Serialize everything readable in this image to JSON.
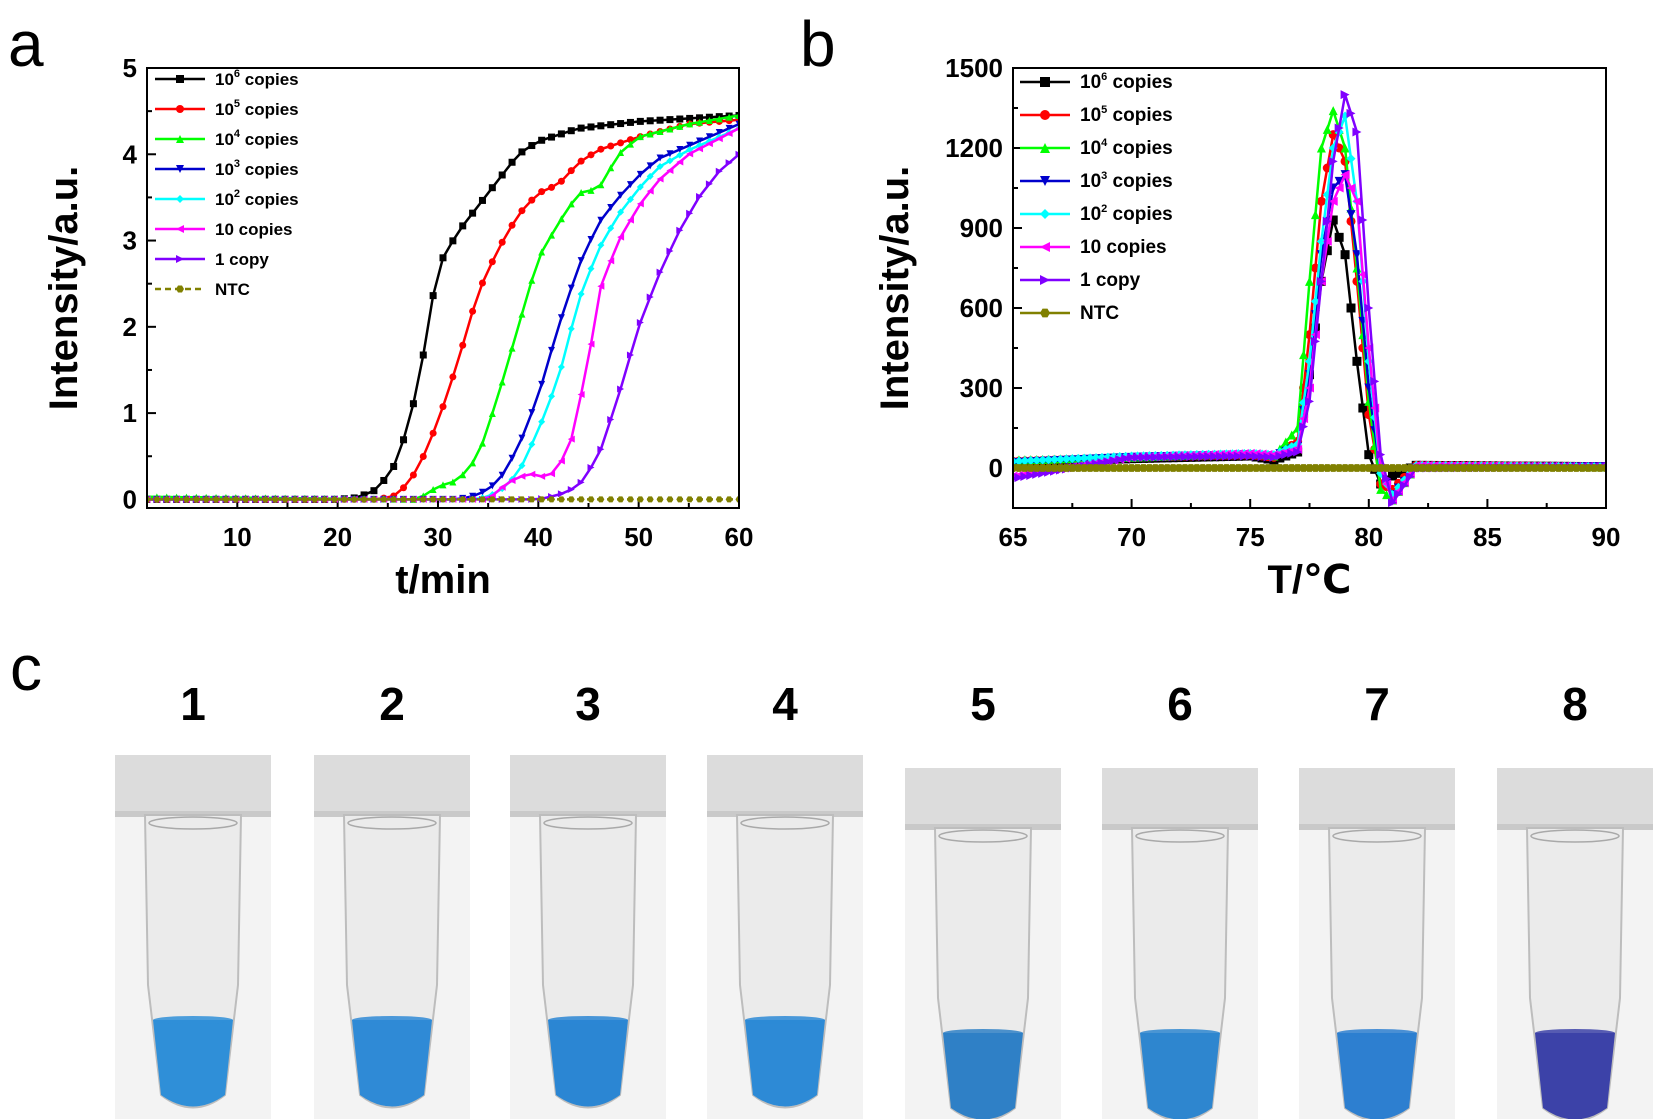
{
  "panels": {
    "a": "a",
    "b": "b",
    "c": "c"
  },
  "chart_data": [
    {
      "id": "a",
      "type": "line",
      "title": "",
      "xlabel": "t/min",
      "ylabel": "Intensity/a.u.",
      "xlim": [
        1,
        60
      ],
      "ylim": [
        -0.1,
        5
      ],
      "xticks": [
        10,
        20,
        30,
        40,
        50,
        60
      ],
      "yticks": [
        0,
        1,
        2,
        3,
        4,
        5
      ],
      "legend_position": "top-left",
      "series": [
        {
          "name": "10⁶ copies",
          "label_base": "10",
          "label_sup": "6",
          "label_rest": " copies",
          "color": "#000000",
          "marker": "square",
          "points": [
            [
              1,
              0
            ],
            [
              20,
              0
            ],
            [
              22,
              0.02
            ],
            [
              24,
              0.12
            ],
            [
              26,
              0.45
            ],
            [
              28,
              1.3
            ],
            [
              29,
              2.0
            ],
            [
              30,
              2.7
            ],
            [
              32,
              3.1
            ],
            [
              34,
              3.4
            ],
            [
              36,
              3.7
            ],
            [
              38,
              4.0
            ],
            [
              40,
              4.15
            ],
            [
              44,
              4.3
            ],
            [
              50,
              4.38
            ],
            [
              60,
              4.45
            ]
          ]
        },
        {
          "name": "10⁵ copies",
          "label_base": "10",
          "label_sup": "5",
          "label_rest": " copies",
          "color": "#ff0000",
          "marker": "circle",
          "points": [
            [
              1,
              0
            ],
            [
              24,
              0
            ],
            [
              26,
              0.05
            ],
            [
              28,
              0.35
            ],
            [
              30,
              0.9
            ],
            [
              32,
              1.6
            ],
            [
              34,
              2.4
            ],
            [
              36,
              2.9
            ],
            [
              38,
              3.3
            ],
            [
              40,
              3.55
            ],
            [
              42,
              3.65
            ],
            [
              44,
              3.9
            ],
            [
              46,
              4.05
            ],
            [
              50,
              4.2
            ],
            [
              55,
              4.35
            ],
            [
              60,
              4.4
            ]
          ]
        },
        {
          "name": "10⁴ copies",
          "label_base": "10",
          "label_sup": "4",
          "label_rest": " copies",
          "color": "#00ff00",
          "marker": "triangle-up",
          "points": [
            [
              1,
              0.03
            ],
            [
              28,
              0
            ],
            [
              30,
              0.15
            ],
            [
              32,
              0.22
            ],
            [
              34,
              0.5
            ],
            [
              36,
              1.2
            ],
            [
              38,
              2.0
            ],
            [
              40,
              2.8
            ],
            [
              42,
              3.2
            ],
            [
              44,
              3.55
            ],
            [
              46,
              3.6
            ],
            [
              48,
              4.0
            ],
            [
              50,
              4.2
            ],
            [
              55,
              4.35
            ],
            [
              60,
              4.45
            ]
          ]
        },
        {
          "name": "10³ copies",
          "label_base": "10",
          "label_sup": "3",
          "label_rest": " copies",
          "color": "#0000cc",
          "marker": "triangle-down",
          "points": [
            [
              1,
              0
            ],
            [
              32,
              0
            ],
            [
              34,
              0.05
            ],
            [
              36,
              0.2
            ],
            [
              38,
              0.6
            ],
            [
              40,
              1.2
            ],
            [
              42,
              2.0
            ],
            [
              44,
              2.7
            ],
            [
              46,
              3.2
            ],
            [
              48,
              3.5
            ],
            [
              50,
              3.75
            ],
            [
              52,
              3.95
            ],
            [
              55,
              4.1
            ],
            [
              60,
              4.35
            ]
          ]
        },
        {
          "name": "10² copies",
          "label_base": "10",
          "label_sup": "2",
          "label_rest": " copies",
          "color": "#00ffff",
          "marker": "diamond",
          "points": [
            [
              1,
              0
            ],
            [
              34,
              0
            ],
            [
              36,
              0.08
            ],
            [
              38,
              0.3
            ],
            [
              40,
              0.8
            ],
            [
              42,
              1.4
            ],
            [
              44,
              2.3
            ],
            [
              46,
              2.9
            ],
            [
              48,
              3.3
            ],
            [
              50,
              3.6
            ],
            [
              52,
              3.85
            ],
            [
              55,
              4.05
            ],
            [
              60,
              4.3
            ]
          ]
        },
        {
          "name": "10 copies",
          "label_base": "10 copies",
          "label_sup": "",
          "label_rest": "",
          "color": "#ff00ff",
          "marker": "triangle-left",
          "points": [
            [
              1,
              0
            ],
            [
              35,
              0
            ],
            [
              37,
              0.2
            ],
            [
              39,
              0.3
            ],
            [
              41,
              0.25
            ],
            [
              43,
              0.55
            ],
            [
              45,
              1.6
            ],
            [
              46,
              2.4
            ],
            [
              48,
              3.0
            ],
            [
              50,
              3.4
            ],
            [
              52,
              3.7
            ],
            [
              55,
              4.0
            ],
            [
              60,
              4.3
            ]
          ]
        },
        {
          "name": "1 copy",
          "label_base": "1 copy",
          "label_sup": "",
          "label_rest": "",
          "color": "#8000ff",
          "marker": "triangle-right",
          "points": [
            [
              1,
              0
            ],
            [
              40,
              0
            ],
            [
              42,
              0.05
            ],
            [
              44,
              0.15
            ],
            [
              46,
              0.5
            ],
            [
              48,
              1.2
            ],
            [
              50,
              2.0
            ],
            [
              52,
              2.6
            ],
            [
              54,
              3.1
            ],
            [
              56,
              3.5
            ],
            [
              58,
              3.8
            ],
            [
              60,
              4.0
            ]
          ]
        },
        {
          "name": "NTC",
          "label_base": "NTC",
          "label_sup": "",
          "label_rest": "",
          "color": "#808000",
          "marker": "hexagon",
          "dashed": true,
          "points": [
            [
              1,
              0
            ],
            [
              60,
              0
            ]
          ]
        }
      ]
    },
    {
      "id": "b",
      "type": "line",
      "title": "",
      "xlabel": "T/℃",
      "ylabel": "Intensity/a.u.",
      "xlim": [
        65,
        90
      ],
      "ylim": [
        -150,
        1500
      ],
      "xticks": [
        65,
        70,
        75,
        80,
        85,
        90
      ],
      "yticks": [
        0,
        300,
        600,
        900,
        1200,
        1500
      ],
      "legend_position": "top-left",
      "series": [
        {
          "name": "10⁶ copies",
          "label_base": "10",
          "label_sup": "6",
          "label_rest": " copies",
          "color": "#000000",
          "marker": "square",
          "points": [
            [
              65,
              20
            ],
            [
              70,
              35
            ],
            [
              75,
              45
            ],
            [
              76,
              30
            ],
            [
              77,
              60
            ],
            [
              77.5,
              350
            ],
            [
              78,
              700
            ],
            [
              78.5,
              930
            ],
            [
              79,
              800
            ],
            [
              79.5,
              400
            ],
            [
              80,
              50
            ],
            [
              80.5,
              -60
            ],
            [
              81,
              -30
            ],
            [
              82,
              10
            ],
            [
              90,
              5
            ]
          ]
        },
        {
          "name": "10⁵ copies",
          "label_base": "10",
          "label_sup": "5",
          "label_rest": " copies",
          "color": "#ff0000",
          "marker": "circle",
          "points": [
            [
              65,
              25
            ],
            [
              70,
              40
            ],
            [
              75,
              50
            ],
            [
              76,
              40
            ],
            [
              77,
              100
            ],
            [
              77.5,
              500
            ],
            [
              78,
              1000
            ],
            [
              78.5,
              1250
            ],
            [
              79,
              1150
            ],
            [
              79.5,
              700
            ],
            [
              80,
              200
            ],
            [
              80.5,
              -60
            ],
            [
              81,
              -80
            ],
            [
              82,
              10
            ],
            [
              90,
              5
            ]
          ]
        },
        {
          "name": "10⁴ copies",
          "label_base": "10",
          "label_sup": "4",
          "label_rest": " copies",
          "color": "#00ff00",
          "marker": "triangle-up",
          "points": [
            [
              65,
              30
            ],
            [
              70,
              40
            ],
            [
              75,
              55
            ],
            [
              76,
              45
            ],
            [
              77,
              150
            ],
            [
              77.5,
              700
            ],
            [
              78,
              1200
            ],
            [
              78.5,
              1340
            ],
            [
              79,
              1200
            ],
            [
              79.5,
              750
            ],
            [
              80,
              250
            ],
            [
              80.5,
              -80
            ],
            [
              81,
              -120
            ],
            [
              82,
              10
            ],
            [
              90,
              5
            ]
          ]
        },
        {
          "name": "10³ copies",
          "label_base": "10",
          "label_sup": "3",
          "label_rest": " copies",
          "color": "#0000cc",
          "marker": "triangle-down",
          "points": [
            [
              65,
              20
            ],
            [
              70,
              40
            ],
            [
              75,
              50
            ],
            [
              76,
              45
            ],
            [
              77,
              80
            ],
            [
              77.5,
              350
            ],
            [
              78,
              800
            ],
            [
              78.5,
              1050
            ],
            [
              79,
              1100
            ],
            [
              79.5,
              800
            ],
            [
              80,
              300
            ],
            [
              80.5,
              -20
            ],
            [
              81,
              -100
            ],
            [
              82,
              0
            ],
            [
              90,
              5
            ]
          ]
        },
        {
          "name": "10² copies",
          "label_base": "10",
          "label_sup": "2",
          "label_rest": " copies",
          "color": "#00ffff",
          "marker": "diamond",
          "points": [
            [
              65,
              25
            ],
            [
              70,
              45
            ],
            [
              75,
              55
            ],
            [
              76,
              50
            ],
            [
              77,
              90
            ],
            [
              77.5,
              400
            ],
            [
              78,
              850
            ],
            [
              78.5,
              1200
            ],
            [
              79,
              1320
            ],
            [
              79.5,
              1000
            ],
            [
              80,
              400
            ],
            [
              80.5,
              -20
            ],
            [
              81,
              -100
            ],
            [
              82,
              10
            ],
            [
              90,
              5
            ]
          ]
        },
        {
          "name": "10 copies",
          "label_base": "10 copies",
          "label_sup": "",
          "label_rest": "",
          "color": "#ff00ff",
          "marker": "triangle-left",
          "points": [
            [
              65,
              -30
            ],
            [
              70,
              40
            ],
            [
              75,
              55
            ],
            [
              76,
              50
            ],
            [
              77,
              70
            ],
            [
              77.5,
              300
            ],
            [
              78,
              700
            ],
            [
              78.5,
              1000
            ],
            [
              79,
              1100
            ],
            [
              79.5,
              1000
            ],
            [
              80,
              450
            ],
            [
              80.5,
              0
            ],
            [
              81,
              -120
            ],
            [
              82,
              10
            ],
            [
              90,
              5
            ]
          ]
        },
        {
          "name": "1 copy",
          "label_base": "1 copy",
          "label_sup": "",
          "label_rest": "",
          "color": "#8000ff",
          "marker": "triangle-right",
          "points": [
            [
              65,
              -40
            ],
            [
              70,
              40
            ],
            [
              75,
              45
            ],
            [
              76,
              40
            ],
            [
              77,
              60
            ],
            [
              77.5,
              250
            ],
            [
              78,
              700
            ],
            [
              78.5,
              1150
            ],
            [
              79,
              1400
            ],
            [
              79.5,
              1260
            ],
            [
              80,
              600
            ],
            [
              80.5,
              50
            ],
            [
              81,
              -130
            ],
            [
              82,
              0
            ],
            [
              90,
              5
            ]
          ]
        },
        {
          "name": "NTC",
          "label_base": "NTC",
          "label_sup": "",
          "label_rest": "",
          "color": "#808000",
          "marker": "hexagon",
          "points": [
            [
              65,
              0
            ],
            [
              90,
              0
            ]
          ]
        }
      ]
    }
  ],
  "tubes": [
    {
      "label": "1",
      "liquid_color": "#2f8fd8"
    },
    {
      "label": "2",
      "liquid_color": "#2f8ad6"
    },
    {
      "label": "3",
      "liquid_color": "#2b86d3"
    },
    {
      "label": "4",
      "liquid_color": "#2d8ad6"
    },
    {
      "label": "5",
      "liquid_color": "#2f80c6"
    },
    {
      "label": "6",
      "liquid_color": "#2e86cf"
    },
    {
      "label": "7",
      "liquid_color": "#2d7fd0"
    },
    {
      "label": "8",
      "liquid_color": "#3c42a8"
    }
  ]
}
